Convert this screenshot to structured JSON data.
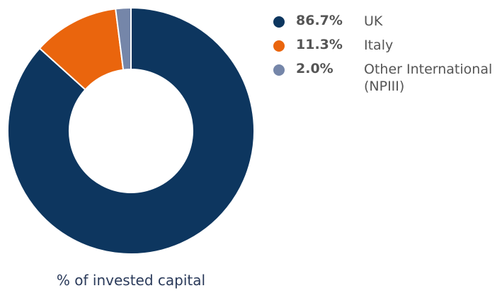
{
  "chart_data": {
    "type": "pie",
    "title": "% of invested capital",
    "categories": [
      "UK",
      "Italy",
      "Other International (NPIII)"
    ],
    "values": [
      86.7,
      11.3,
      2.0
    ],
    "value_labels": [
      "86.7%",
      "11.3%",
      "2.0%"
    ],
    "colors": [
      "#0d365f",
      "#ea650d",
      "#7586a9"
    ],
    "donut": true
  }
}
